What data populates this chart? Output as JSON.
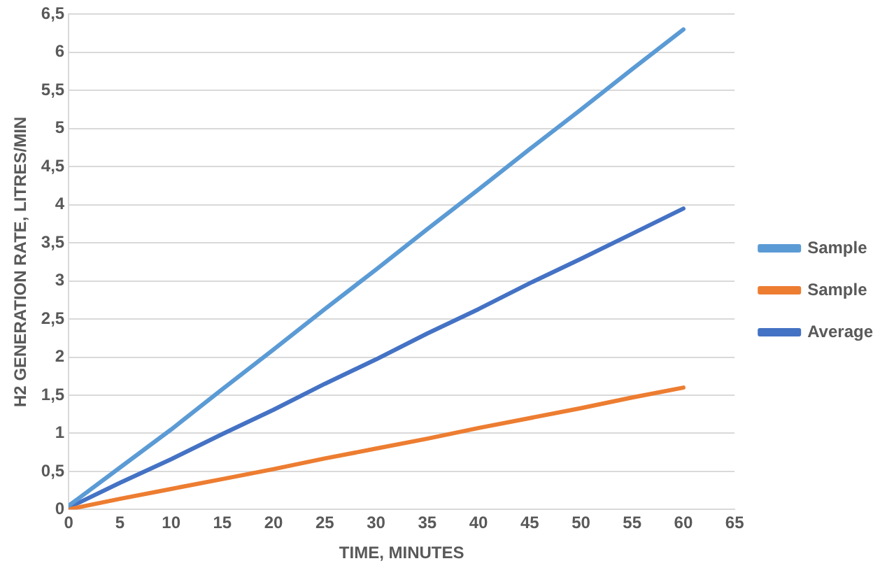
{
  "chart_data": {
    "type": "line",
    "xlabel": "TIME, MINUTES",
    "ylabel": "H2 GENERATION RATE, LITRES/MIN",
    "x": [
      0,
      1,
      5,
      10,
      15,
      20,
      25,
      30,
      35,
      40,
      45,
      50,
      55,
      60
    ],
    "series": [
      {
        "name": "Sample",
        "color": "#5b9bd5",
        "values": [
          0.05,
          0.15,
          0.55,
          1.05,
          1.58,
          2.1,
          2.63,
          3.15,
          3.68,
          4.2,
          4.73,
          5.25,
          5.78,
          6.3
        ]
      },
      {
        "name": "Sample",
        "color": "#ed7d31",
        "values": [
          0,
          0.03,
          0.14,
          0.27,
          0.4,
          0.53,
          0.67,
          0.8,
          0.93,
          1.07,
          1.2,
          1.33,
          1.47,
          1.6
        ]
      },
      {
        "name": "Average",
        "color": "#4472c4",
        "values": [
          0.03,
          0.09,
          0.35,
          0.66,
          0.99,
          1.31,
          1.65,
          1.97,
          2.31,
          2.63,
          2.97,
          3.29,
          3.62,
          3.95
        ]
      }
    ],
    "xlim": [
      0,
      65
    ],
    "xticks": [
      0,
      5,
      10,
      15,
      20,
      25,
      30,
      35,
      40,
      45,
      50,
      55,
      60,
      65
    ],
    "ylim": [
      0,
      6.5
    ],
    "yticks": [
      0,
      {
        "value": 0.5,
        "label": "0,5"
      },
      1,
      {
        "value": 1.5,
        "label": "1,5"
      },
      2,
      {
        "value": 2.5,
        "label": "2,5"
      },
      3,
      {
        "value": 3.5,
        "label": "3,5"
      },
      4,
      {
        "value": 4.5,
        "label": "4,5"
      },
      5,
      {
        "value": 5.5,
        "label": "5,5"
      },
      6,
      {
        "value": 6.5,
        "label": "6,5"
      }
    ],
    "grid": "y",
    "legend": "right",
    "marker": "none",
    "line_style": "solid"
  }
}
